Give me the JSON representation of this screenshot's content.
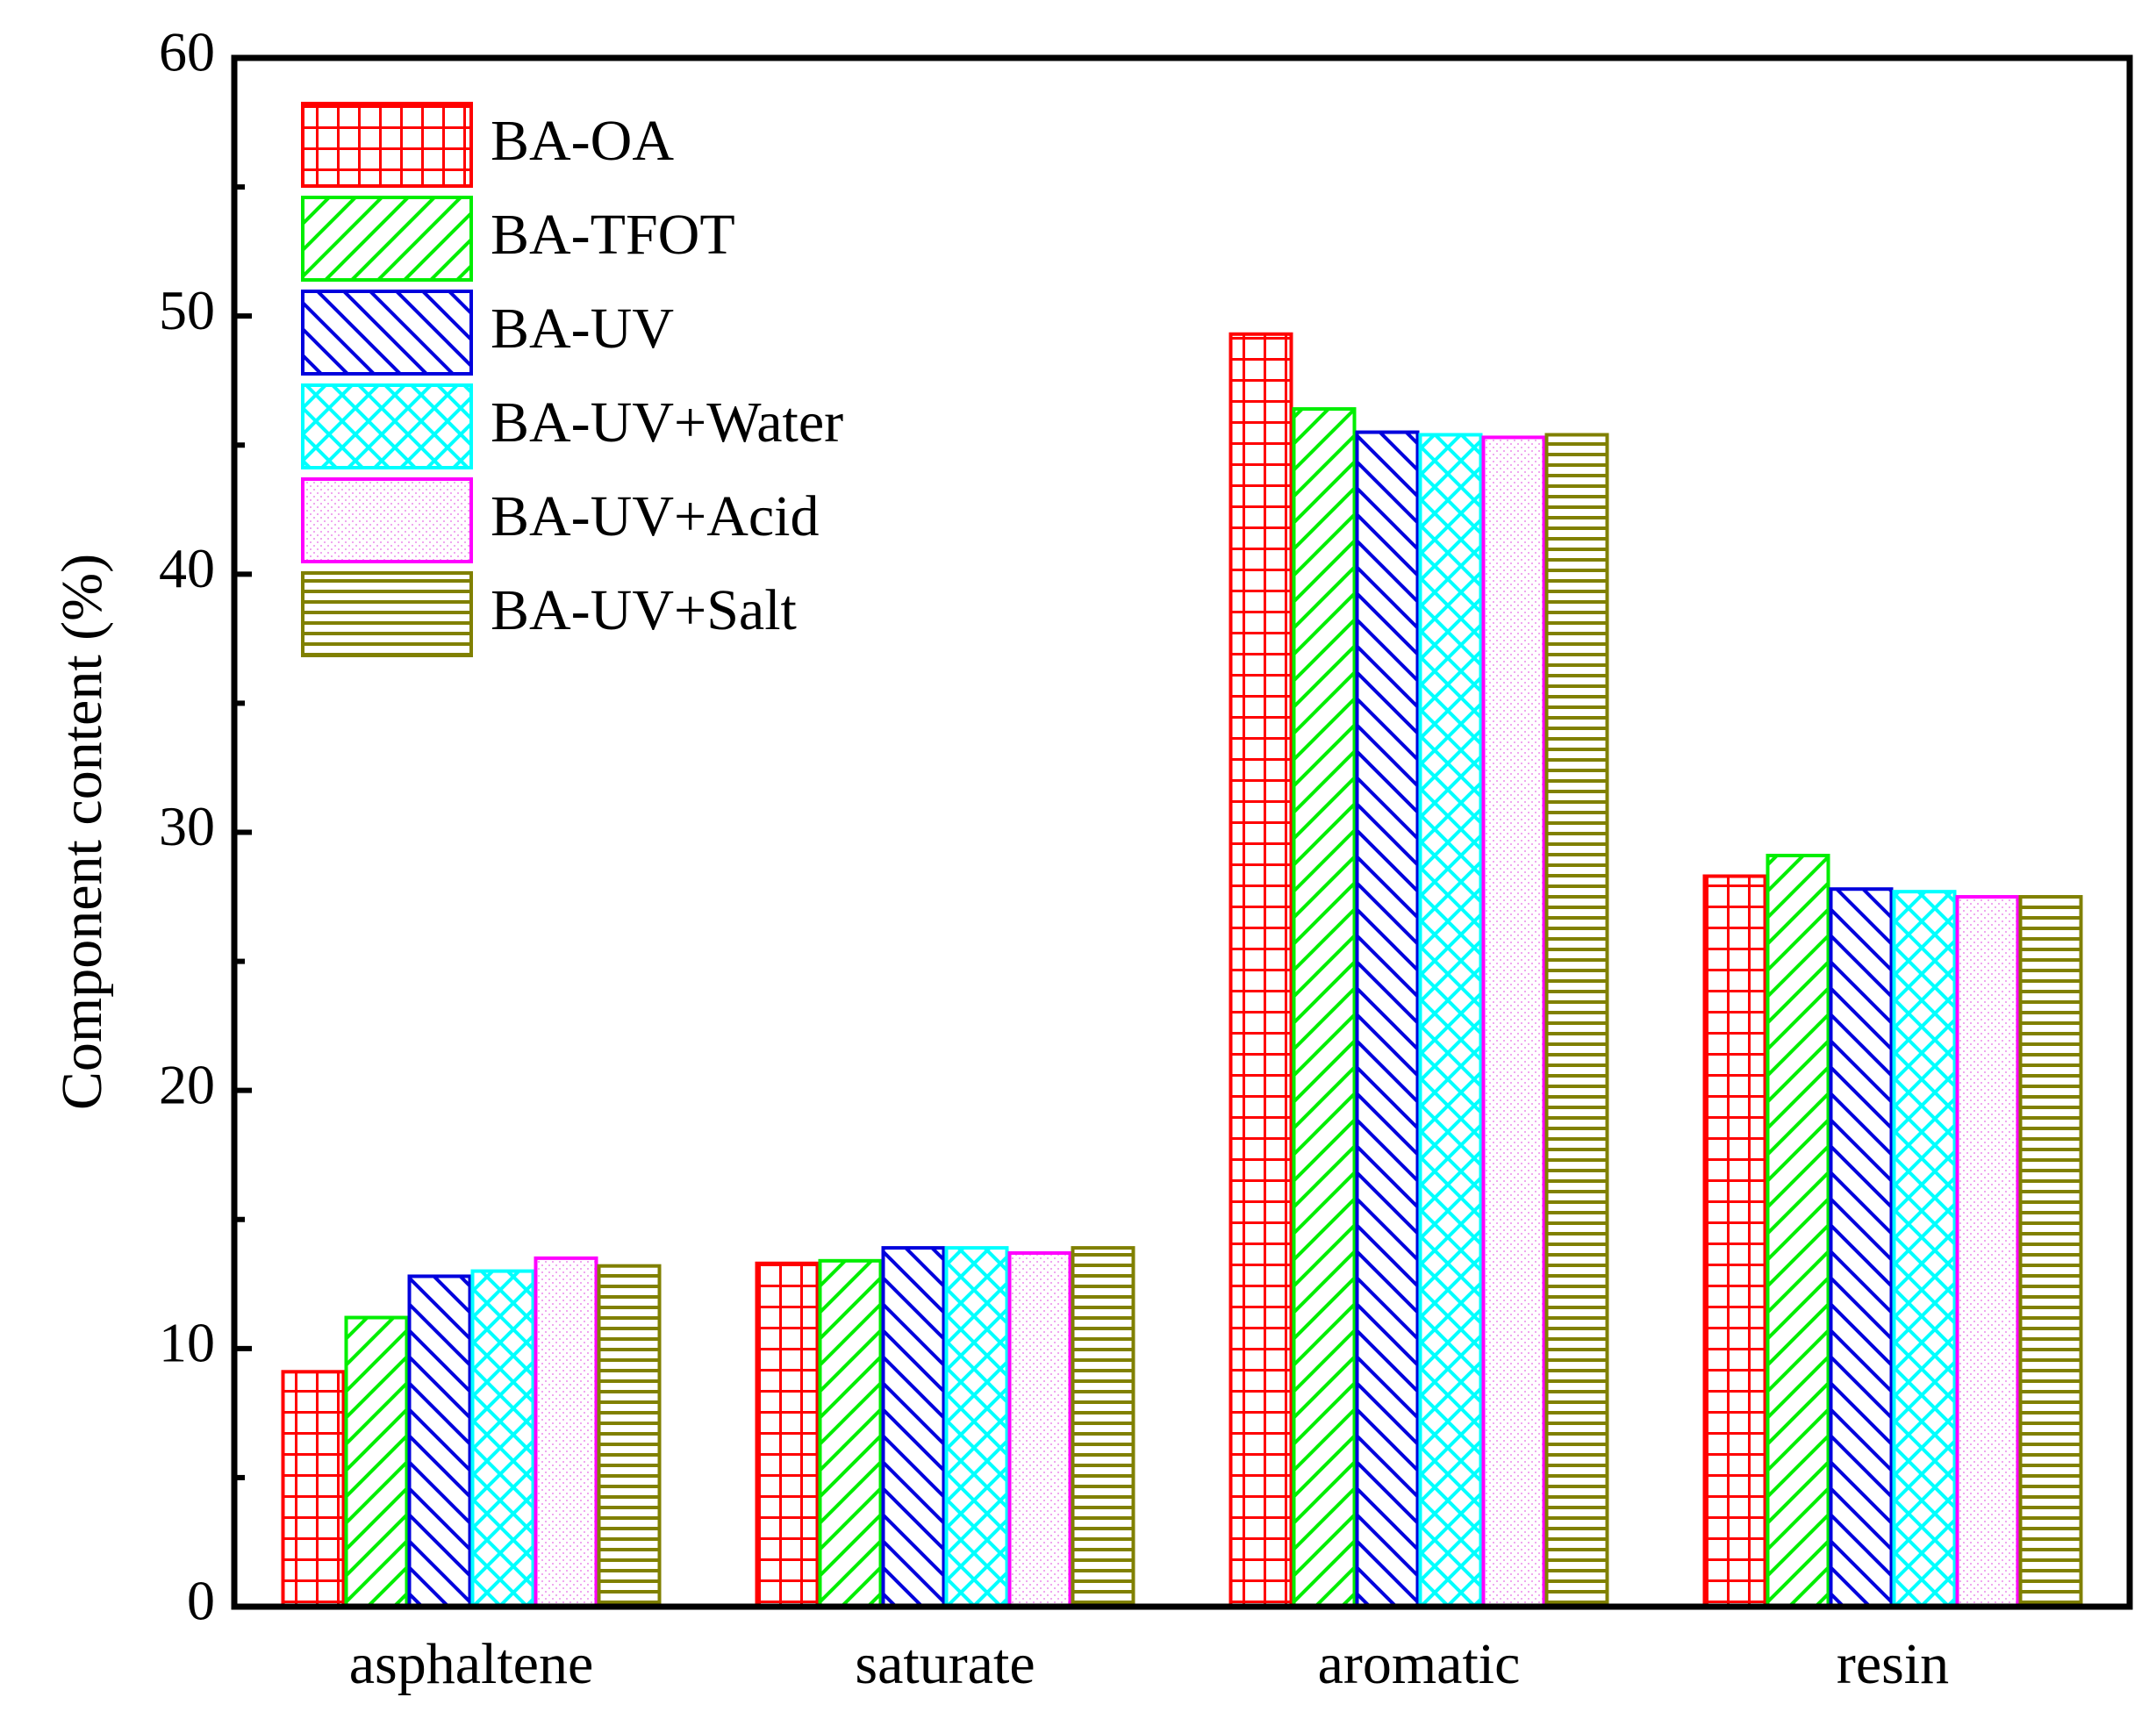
{
  "chart_data": {
    "type": "bar",
    "title": "",
    "xlabel": "",
    "ylabel": "Component content (%)",
    "ylim": [
      0,
      60
    ],
    "yticks": [
      0,
      10,
      20,
      30,
      40,
      50,
      60
    ],
    "categories": [
      "asphaltene",
      "saturate",
      "aromatic",
      "resin"
    ],
    "legend_position": "top-left",
    "grid": false,
    "series": [
      {
        "name": "BA-OA",
        "color": "#ff0000",
        "pattern": "grid",
        "values": [
          9.1,
          13.3,
          49.3,
          28.3
        ]
      },
      {
        "name": "BA-TFOT",
        "color": "#00ee00",
        "pattern": "diag-up",
        "values": [
          11.2,
          13.4,
          46.4,
          29.1
        ]
      },
      {
        "name": "BA-UV",
        "color": "#0000dd",
        "pattern": "diag-down",
        "values": [
          12.8,
          13.9,
          45.5,
          27.8
        ]
      },
      {
        "name": "BA-UV+Water",
        "color": "#00ffff",
        "pattern": "crosshatch",
        "values": [
          13.0,
          13.9,
          45.4,
          27.7
        ]
      },
      {
        "name": "BA-UV+Acid",
        "color": "#ff00ff",
        "pattern": "dots",
        "values": [
          13.5,
          13.7,
          45.3,
          27.5
        ]
      },
      {
        "name": "BA-UV+Salt",
        "color": "#808000",
        "pattern": "horizontal",
        "values": [
          13.2,
          13.9,
          45.4,
          27.5
        ]
      }
    ]
  }
}
